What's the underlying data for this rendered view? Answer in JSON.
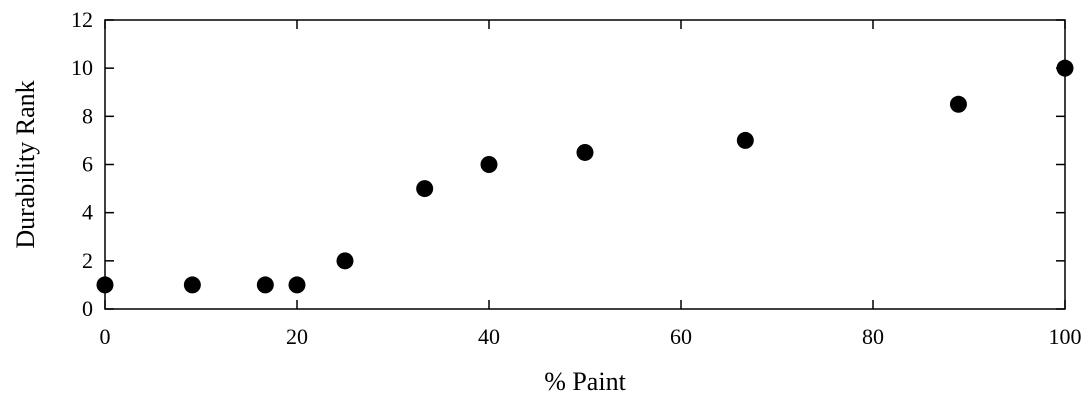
{
  "chart_data": {
    "type": "scatter",
    "title": "",
    "xlabel": "% Paint",
    "ylabel": "Durability Rank",
    "xlim": [
      0,
      100
    ],
    "ylim": [
      0,
      12
    ],
    "xticks": [
      0,
      20,
      40,
      60,
      80,
      100
    ],
    "yticks": [
      0,
      2,
      4,
      6,
      8,
      10,
      12
    ],
    "xtick_labels": [
      "0",
      "20",
      "40",
      "60",
      "80",
      "100"
    ],
    "ytick_labels": [
      "0",
      "2",
      "4",
      "6",
      "8",
      "10",
      "12"
    ],
    "grid": false,
    "legend": "none",
    "marker_color": "#000000",
    "points": [
      {
        "x": 0,
        "y": 1
      },
      {
        "x": 9.1,
        "y": 1
      },
      {
        "x": 16.7,
        "y": 1
      },
      {
        "x": 20,
        "y": 1
      },
      {
        "x": 25,
        "y": 2
      },
      {
        "x": 33.3,
        "y": 5
      },
      {
        "x": 40,
        "y": 6
      },
      {
        "x": 50,
        "y": 6.5
      },
      {
        "x": 66.7,
        "y": 7
      },
      {
        "x": 88.9,
        "y": 8.5
      },
      {
        "x": 100,
        "y": 10
      }
    ]
  }
}
